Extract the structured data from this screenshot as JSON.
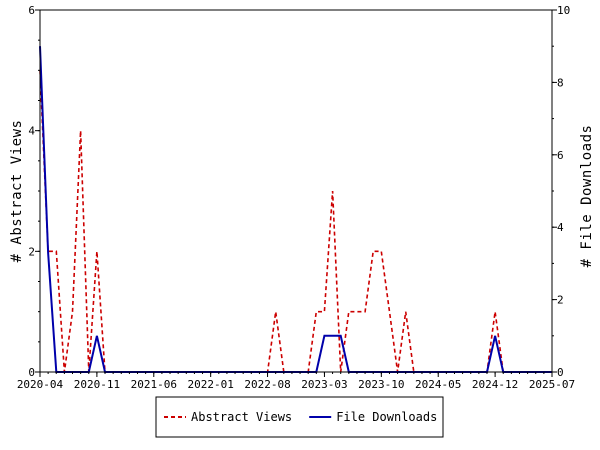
{
  "chart_data": {
    "type": "line",
    "title": "",
    "xlabel": "",
    "ylabel": "# Abstract Views",
    "y2label": "# File Downloads",
    "xlim": [
      "2020-04",
      "2025-07"
    ],
    "ylim": [
      0,
      6
    ],
    "y2lim": [
      0,
      10
    ],
    "x_ticks": [
      "2020-04",
      "2020-11",
      "2021-06",
      "2022-01",
      "2022-08",
      "2023-03",
      "2023-10",
      "2024-05",
      "2024-12",
      "2025-07"
    ],
    "y_ticks": [
      "0",
      "2",
      "4",
      "6"
    ],
    "y2_ticks": [
      "0",
      "2",
      "4",
      "6",
      "8",
      "10"
    ],
    "x": [
      "2020-04",
      "2020-05",
      "2020-06",
      "2020-07",
      "2020-08",
      "2020-09",
      "2020-10",
      "2020-11",
      "2020-12",
      "2021-01",
      "2021-02",
      "2021-03",
      "2021-04",
      "2021-05",
      "2021-06",
      "2021-07",
      "2021-08",
      "2021-09",
      "2021-10",
      "2021-11",
      "2021-12",
      "2022-01",
      "2022-02",
      "2022-03",
      "2022-04",
      "2022-05",
      "2022-06",
      "2022-07",
      "2022-08",
      "2022-09",
      "2022-10",
      "2022-11",
      "2022-12",
      "2023-01",
      "2023-02",
      "2023-03",
      "2023-04",
      "2023-05",
      "2023-06",
      "2023-07",
      "2023-08",
      "2023-09",
      "2023-10",
      "2023-11",
      "2023-12",
      "2024-01",
      "2024-02",
      "2024-03",
      "2024-04",
      "2024-05",
      "2024-06",
      "2024-07",
      "2024-08",
      "2024-09",
      "2024-10",
      "2024-11",
      "2024-12",
      "2025-01",
      "2025-02",
      "2025-03",
      "2025-04",
      "2025-05",
      "2025-06",
      "2025-07"
    ],
    "series": [
      {
        "name": "Abstract Views",
        "axis": "left",
        "color": "#cc0000",
        "dash": "dashed",
        "values": [
          5,
          2,
          2,
          0,
          1,
          4,
          0,
          2,
          0,
          0,
          0,
          0,
          0,
          0,
          0,
          0,
          0,
          0,
          0,
          0,
          0,
          0,
          0,
          0,
          0,
          0,
          0,
          0,
          0,
          1,
          0,
          0,
          0,
          0,
          1,
          1,
          3,
          0,
          1,
          1,
          1,
          2,
          2,
          1,
          0,
          1,
          0,
          0,
          0,
          0,
          0,
          0,
          0,
          0,
          0,
          0,
          1,
          0,
          0,
          0,
          0,
          0,
          0,
          0
        ]
      },
      {
        "name": "File Downloads",
        "axis": "right",
        "color": "#0000aa",
        "dash": "solid",
        "values": [
          9,
          3.3,
          0,
          0,
          0,
          0,
          0,
          1,
          0,
          0,
          0,
          0,
          0,
          0,
          0,
          0,
          0,
          0,
          0,
          0,
          0,
          0,
          0,
          0,
          0,
          0,
          0,
          0,
          0,
          0,
          0,
          0,
          0,
          0,
          0,
          1,
          1,
          1,
          0,
          0,
          0,
          0,
          0,
          0,
          0,
          0,
          0,
          0,
          0,
          0,
          0,
          0,
          0,
          0,
          0,
          0,
          1,
          0,
          0,
          0,
          0,
          0,
          0,
          0
        ]
      }
    ],
    "grid": false,
    "legend_position": "bottom-center"
  }
}
